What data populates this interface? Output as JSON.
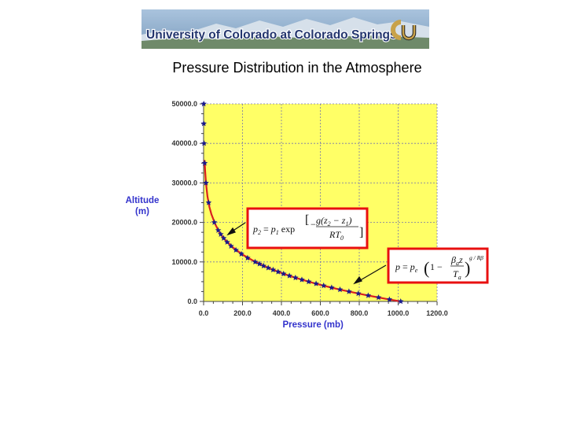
{
  "banner": {
    "text": "University of Colorado at Colorado Springs",
    "colors": {
      "sky": "#8fb0cf",
      "mountain": "#c9d6e2",
      "text_fill": "#23356e",
      "text_outline": "#ffffff",
      "logo_gold": "#c8a24a"
    }
  },
  "page": {
    "title": "Pressure Distribution in the Atmosphere"
  },
  "colors": {
    "plot_bg": "#ffff66",
    "grid": "#7777aa",
    "curve": "#d92020",
    "marker": "#1a1a8c",
    "axis_label": "#3333cc",
    "callout_border": "#e81010"
  },
  "formulas": {
    "isothermal": {
      "lhs": "p",
      "lhs_sub": "2",
      "eq": " = ",
      "p1": "p",
      "p1_sub": "1",
      "func": "exp",
      "num": "g(z",
      "num_sub2": "2",
      "num_mid": " − z",
      "num_sub1": "1",
      "num_end": ")",
      "den": "RT",
      "den_sub": "0"
    },
    "lapse": {
      "lhs": "p",
      "eq": " = ",
      "pe": "p",
      "pe_sub": "e",
      "one": "1 − ",
      "num": "β",
      "num_sub": "a",
      "num_end": "z",
      "den": "T",
      "den_sub": "a",
      "exp": "g / Rβ"
    }
  },
  "chart_data": {
    "type": "scatter",
    "title": "",
    "xlabel": "Pressure (mb)",
    "ylabel_line1": "Altitude",
    "ylabel_line2": "(m)",
    "xlim": [
      0,
      1200
    ],
    "ylim": [
      0,
      50000
    ],
    "x_ticks": [
      "0.0",
      "200.0",
      "400.0",
      "600.0",
      "800.0",
      "1000.0",
      "1200.0"
    ],
    "y_ticks": [
      "0.0",
      "10000.0",
      "20000.0",
      "30000.0",
      "40000.0",
      "50000.0"
    ],
    "grid": true,
    "curve": {
      "x": [
        1013,
        950,
        900,
        850,
        800,
        750,
        700,
        650,
        600,
        550,
        500,
        450,
        400,
        350,
        300,
        250,
        200,
        150,
        120,
        100,
        80,
        60,
        40,
        30,
        20,
        12,
        8,
        5
      ],
      "y": [
        0,
        540,
        990,
        1460,
        1950,
        2470,
        3010,
        3590,
        4210,
        4870,
        5570,
        6340,
        7190,
        8140,
        9200,
        10440,
        11860,
        13700,
        15100,
        16200,
        17600,
        19500,
        22100,
        23900,
        26600,
        30000,
        32900,
        35800
      ]
    },
    "markers": {
      "x": [
        1013,
        955,
        899,
        846,
        795,
        747,
        701,
        658,
        617,
        578,
        540,
        505,
        472,
        441,
        411,
        383,
        357,
        332,
        308,
        287,
        265,
        226,
        194,
        166,
        141,
        121,
        103,
        88,
        75,
        55,
        26,
        12,
        5.5,
        2.5,
        1.2,
        0.8
      ],
      "y": [
        0,
        500,
        1000,
        1500,
        2000,
        2500,
        3000,
        3500,
        4000,
        4500,
        5000,
        5500,
        6000,
        6500,
        7000,
        7500,
        8000,
        8500,
        9000,
        9500,
        10000,
        11000,
        12000,
        13000,
        14000,
        15000,
        16000,
        17000,
        18000,
        20000,
        25000,
        30000,
        35000,
        40000,
        45000,
        50000
      ]
    }
  }
}
